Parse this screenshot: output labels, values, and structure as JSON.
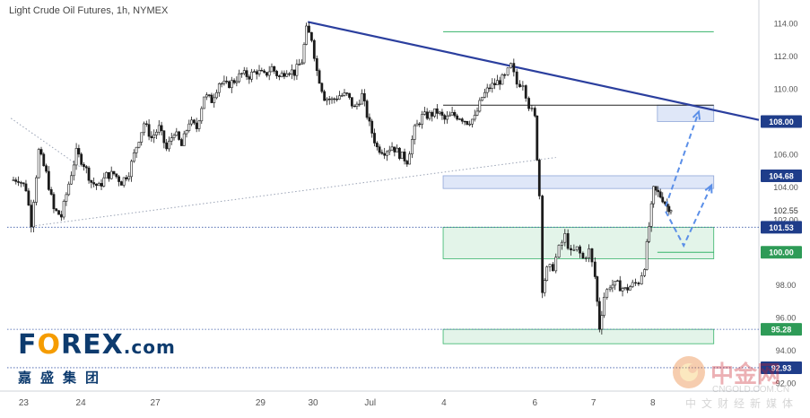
{
  "title": "Light Crude Oil Futures, 1h, NYMEX",
  "logo": {
    "text_pre": "F",
    "text_o": "O",
    "text_post": "REX",
    "text_com": ".com",
    "subtitle": "嘉盛集团"
  },
  "watermark": {
    "text": "中金网",
    "url": "CNGOLD.COM.CN",
    "sub": "中文财经新媒体"
  },
  "colors": {
    "up_candle": "#1b1b1b",
    "trendline": "#2b3f9e",
    "dashed_arrow": "#5b8fe8",
    "zone_blue": "#dfe7f8",
    "zone_green": "#e3f4e9",
    "green_line": "#36b36a",
    "badge_blue": "#1f3d8a",
    "badge_green": "#2e9b57"
  },
  "chart_data": {
    "type": "candlestick",
    "ylim": [
      91.5,
      115.0
    ],
    "x_range": [
      0,
      100
    ],
    "yticks": [
      92,
      94,
      96,
      98,
      100,
      102,
      104,
      106,
      108,
      110,
      112,
      114
    ],
    "ytick_labels": [
      "92.00",
      "94.00",
      "96.00",
      "98.00",
      "100.00",
      "102.00",
      "104.00",
      "106.00",
      "108.00",
      "110.00",
      "112.00",
      "114.00"
    ],
    "xtick_labels": [
      {
        "x": 2.2,
        "label": "23"
      },
      {
        "x": 9.8,
        "label": "24"
      },
      {
        "x": 19.7,
        "label": "27"
      },
      {
        "x": 33.7,
        "label": "29"
      },
      {
        "x": 40.7,
        "label": "30"
      },
      {
        "x": 48.3,
        "label": "Jul"
      },
      {
        "x": 58.1,
        "label": "4"
      },
      {
        "x": 70.2,
        "label": "6"
      },
      {
        "x": 78.0,
        "label": "7"
      },
      {
        "x": 85.9,
        "label": "8"
      }
    ],
    "price_path": [
      [
        0.5,
        104.4
      ],
      [
        1.5,
        104.5
      ],
      [
        2.5,
        103.9
      ],
      [
        3.2,
        101.8
      ],
      [
        4.2,
        106.2
      ],
      [
        5.2,
        104.8
      ],
      [
        6.2,
        102.6
      ],
      [
        7.2,
        102.2
      ],
      [
        8.2,
        104.2
      ],
      [
        9.2,
        106.1
      ],
      [
        10.2,
        105.4
      ],
      [
        11.2,
        104.3
      ],
      [
        12.2,
        104.0
      ],
      [
        13.2,
        104.7
      ],
      [
        14.2,
        104.8
      ],
      [
        15.2,
        104.3
      ],
      [
        16.2,
        104.9
      ],
      [
        17.2,
        106.5
      ],
      [
        18.2,
        107.9
      ],
      [
        19.2,
        107.0
      ],
      [
        20.2,
        107.6
      ],
      [
        21.2,
        106.3
      ],
      [
        22.2,
        107.4
      ],
      [
        23.2,
        106.5
      ],
      [
        24.2,
        108.0
      ],
      [
        25.2,
        107.6
      ],
      [
        26.2,
        109.6
      ],
      [
        27.2,
        109.3
      ],
      [
        28.2,
        110.4
      ],
      [
        29.2,
        110.2
      ],
      [
        30.2,
        110.5
      ],
      [
        31.2,
        110.9
      ],
      [
        32.2,
        110.8
      ],
      [
        33.2,
        111.1
      ],
      [
        34.2,
        110.8
      ],
      [
        35.2,
        111.3
      ],
      [
        36.2,
        110.7
      ],
      [
        37.2,
        111.2
      ],
      [
        38.2,
        111.0
      ],
      [
        39.2,
        111.7
      ],
      [
        39.8,
        113.6
      ],
      [
        40.5,
        113.1
      ],
      [
        41.2,
        111.1
      ],
      [
        42.2,
        109.5
      ],
      [
        43.2,
        109.3
      ],
      [
        44.2,
        109.6
      ],
      [
        45.2,
        109.6
      ],
      [
        46.2,
        108.8
      ],
      [
        47.2,
        109.6
      ],
      [
        48.2,
        107.8
      ],
      [
        49.2,
        106.4
      ],
      [
        50.2,
        106.2
      ],
      [
        51.2,
        106.5
      ],
      [
        52.2,
        106.0
      ],
      [
        53.2,
        105.6
      ],
      [
        54.2,
        107.5
      ],
      [
        55.2,
        108.3
      ],
      [
        56.2,
        108.4
      ],
      [
        57.2,
        108.6
      ],
      [
        58.2,
        108.1
      ],
      [
        59.2,
        108.4
      ],
      [
        60.2,
        108.3
      ],
      [
        61.2,
        108.0
      ],
      [
        62.2,
        108.2
      ],
      [
        63.2,
        109.5
      ],
      [
        64.2,
        110.1
      ],
      [
        65.2,
        110.4
      ],
      [
        66.2,
        110.7
      ],
      [
        67.0,
        111.4
      ],
      [
        67.8,
        110.3
      ],
      [
        68.6,
        110.4
      ],
      [
        69.4,
        109.0
      ],
      [
        70.2,
        108.2
      ],
      [
        70.8,
        103.5
      ],
      [
        71.2,
        97.8
      ],
      [
        71.8,
        98.9
      ],
      [
        72.6,
        99.1
      ],
      [
        73.4,
        100.2
      ],
      [
        74.2,
        101.0
      ],
      [
        75.0,
        99.9
      ],
      [
        75.8,
        100.2
      ],
      [
        76.6,
        99.6
      ],
      [
        77.4,
        100.1
      ],
      [
        78.2,
        98.5
      ],
      [
        78.8,
        95.4
      ],
      [
        79.4,
        97.3
      ],
      [
        80.2,
        98.0
      ],
      [
        81.2,
        98.0
      ],
      [
        82.2,
        97.7
      ],
      [
        83.2,
        98.0
      ],
      [
        84.0,
        98.2
      ],
      [
        84.8,
        99.2
      ],
      [
        85.4,
        101.6
      ],
      [
        86.0,
        103.8
      ],
      [
        86.6,
        103.6
      ],
      [
        87.2,
        103.3
      ],
      [
        87.8,
        102.8
      ],
      [
        88.3,
        102.7
      ]
    ],
    "trendlines": [
      {
        "x1": 40.0,
        "y1": 114.1,
        "x2": 100.0,
        "y2": 108.1
      },
      {
        "x1": 3.3,
        "y1": 101.6,
        "x2": 73.0,
        "y2": 105.8,
        "style": "dotted"
      },
      {
        "x1": 0.5,
        "y1": 108.2,
        "x2": 9.8,
        "y2": 105.2,
        "style": "dotted"
      }
    ],
    "horizontal_levels": [
      101.53,
      95.28,
      92.93
    ],
    "zones": [
      {
        "x1": 58.0,
        "x2": 94.0,
        "y1": 103.9,
        "y2": 104.68,
        "color": "blue"
      },
      {
        "x1": 58.0,
        "x2": 94.0,
        "y1": 99.6,
        "y2": 101.53,
        "color": "green"
      },
      {
        "x1": 58.0,
        "x2": 94.0,
        "y1": 94.4,
        "y2": 95.28,
        "color": "green"
      },
      {
        "x1": 86.5,
        "x2": 94.0,
        "y1": 108.0,
        "y2": 109.0,
        "color": "blue"
      }
    ],
    "lines": [
      {
        "x1": 58.0,
        "x2": 94.0,
        "y": 113.5,
        "color": "green"
      },
      {
        "x1": 58.0,
        "x2": 94.0,
        "y": 109.0,
        "color": "black"
      },
      {
        "x1": 86.5,
        "x2": 94.0,
        "y": 100.0,
        "color": "green"
      }
    ],
    "projection_arrows": [
      [
        [
          87.6,
          102.8
        ],
        [
          92.0,
          108.6
        ]
      ],
      [
        [
          87.6,
          102.5
        ],
        [
          90.0,
          100.4
        ],
        [
          93.7,
          104.1
        ]
      ]
    ],
    "price_labels": [
      {
        "value": 108.0,
        "label": "108.00",
        "color": "blue"
      },
      {
        "value": 104.68,
        "label": "104.68",
        "color": "blue"
      },
      {
        "value": 102.55,
        "label": "102.55",
        "color": "plain"
      },
      {
        "value": 101.53,
        "label": "101.53",
        "color": "blue"
      },
      {
        "value": 100.0,
        "label": "100.00",
        "color": "green"
      },
      {
        "value": 95.28,
        "label": "95.28",
        "color": "green"
      },
      {
        "value": 92.93,
        "label": "92.93",
        "color": "blue"
      }
    ]
  }
}
